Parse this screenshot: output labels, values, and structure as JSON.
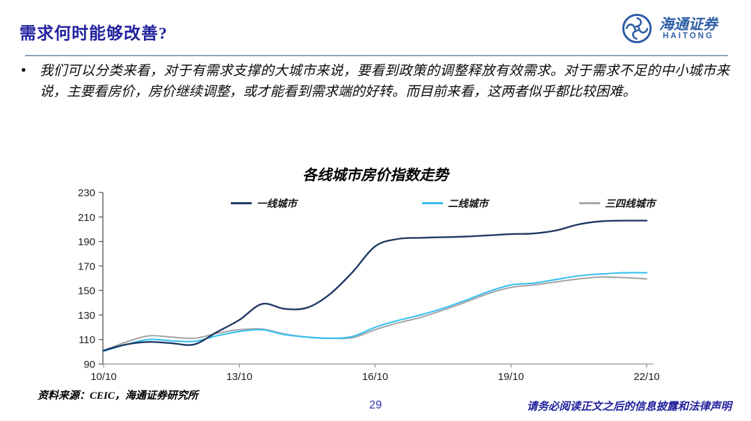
{
  "header": {
    "title": "需求何时能够改善?",
    "logo": {
      "cn": "海通证券",
      "en": "HAITONG"
    }
  },
  "body": {
    "bullet_marker": "•",
    "paragraph": "我们可以分类来看，对于有需求支撑的大城市来说，要看到政策的调整释放有效需求。对于需求不足的中小城市来说，主要看房价，房价继续调整，或才能看到需求端的好转。而目前来看，这两者似乎都比较困难。"
  },
  "chart_data": {
    "type": "line",
    "title": "各线城市房价指数走势",
    "grid": false,
    "legend_position": "top",
    "ylim": [
      90,
      230
    ],
    "y_ticks": [
      90,
      110,
      130,
      150,
      170,
      190,
      210,
      230
    ],
    "x_tick_labels": [
      "10/10",
      "13/10",
      "16/10",
      "19/10",
      "22/10"
    ],
    "x": [
      "10/10",
      "11/4",
      "11/10",
      "12/4",
      "12/10",
      "13/4",
      "13/10",
      "14/4",
      "14/10",
      "15/4",
      "15/10",
      "16/4",
      "16/10",
      "17/4",
      "17/10",
      "18/4",
      "18/10",
      "19/4",
      "19/10",
      "20/4",
      "20/10",
      "21/4",
      "21/10",
      "22/4",
      "22/10"
    ],
    "series": [
      {
        "name": "一线城市",
        "color": "#1F3864",
        "values": [
          101,
          106,
          108,
          107,
          106,
          116,
          126,
          139,
          135,
          136,
          147,
          165,
          186,
          192,
          193,
          193.5,
          194,
          195,
          196,
          196.5,
          199,
          204,
          206.5,
          207,
          207
        ]
      },
      {
        "name": "二线城市",
        "color": "#33BEF0",
        "values": [
          100.5,
          106,
          110,
          109,
          108.5,
          113,
          116.5,
          118,
          114,
          112,
          111,
          112.5,
          120,
          125.5,
          130,
          135.5,
          142,
          149,
          154.5,
          156,
          159,
          162,
          163.5,
          164.5,
          164.5
        ]
      },
      {
        "name": "三四线城市",
        "color": "#A6A6A6",
        "values": [
          101,
          108,
          113,
          112,
          111,
          115,
          118,
          118.5,
          114.5,
          112,
          111,
          111.5,
          118,
          123.5,
          128,
          134,
          140.5,
          147.5,
          152.5,
          154.5,
          157,
          159.5,
          161,
          160.5,
          159.5
        ]
      }
    ],
    "axis_colors": {
      "y_axis": "#4D4D4D",
      "x_axis": "#A6A6A6",
      "tick_text": "#1F1F1F"
    }
  },
  "footer": {
    "source": "资料来源：CEIC，海通证券研究所",
    "page_number": "29",
    "disclaimer": "请务必阅读正文之后的信息披露和法律声明"
  }
}
